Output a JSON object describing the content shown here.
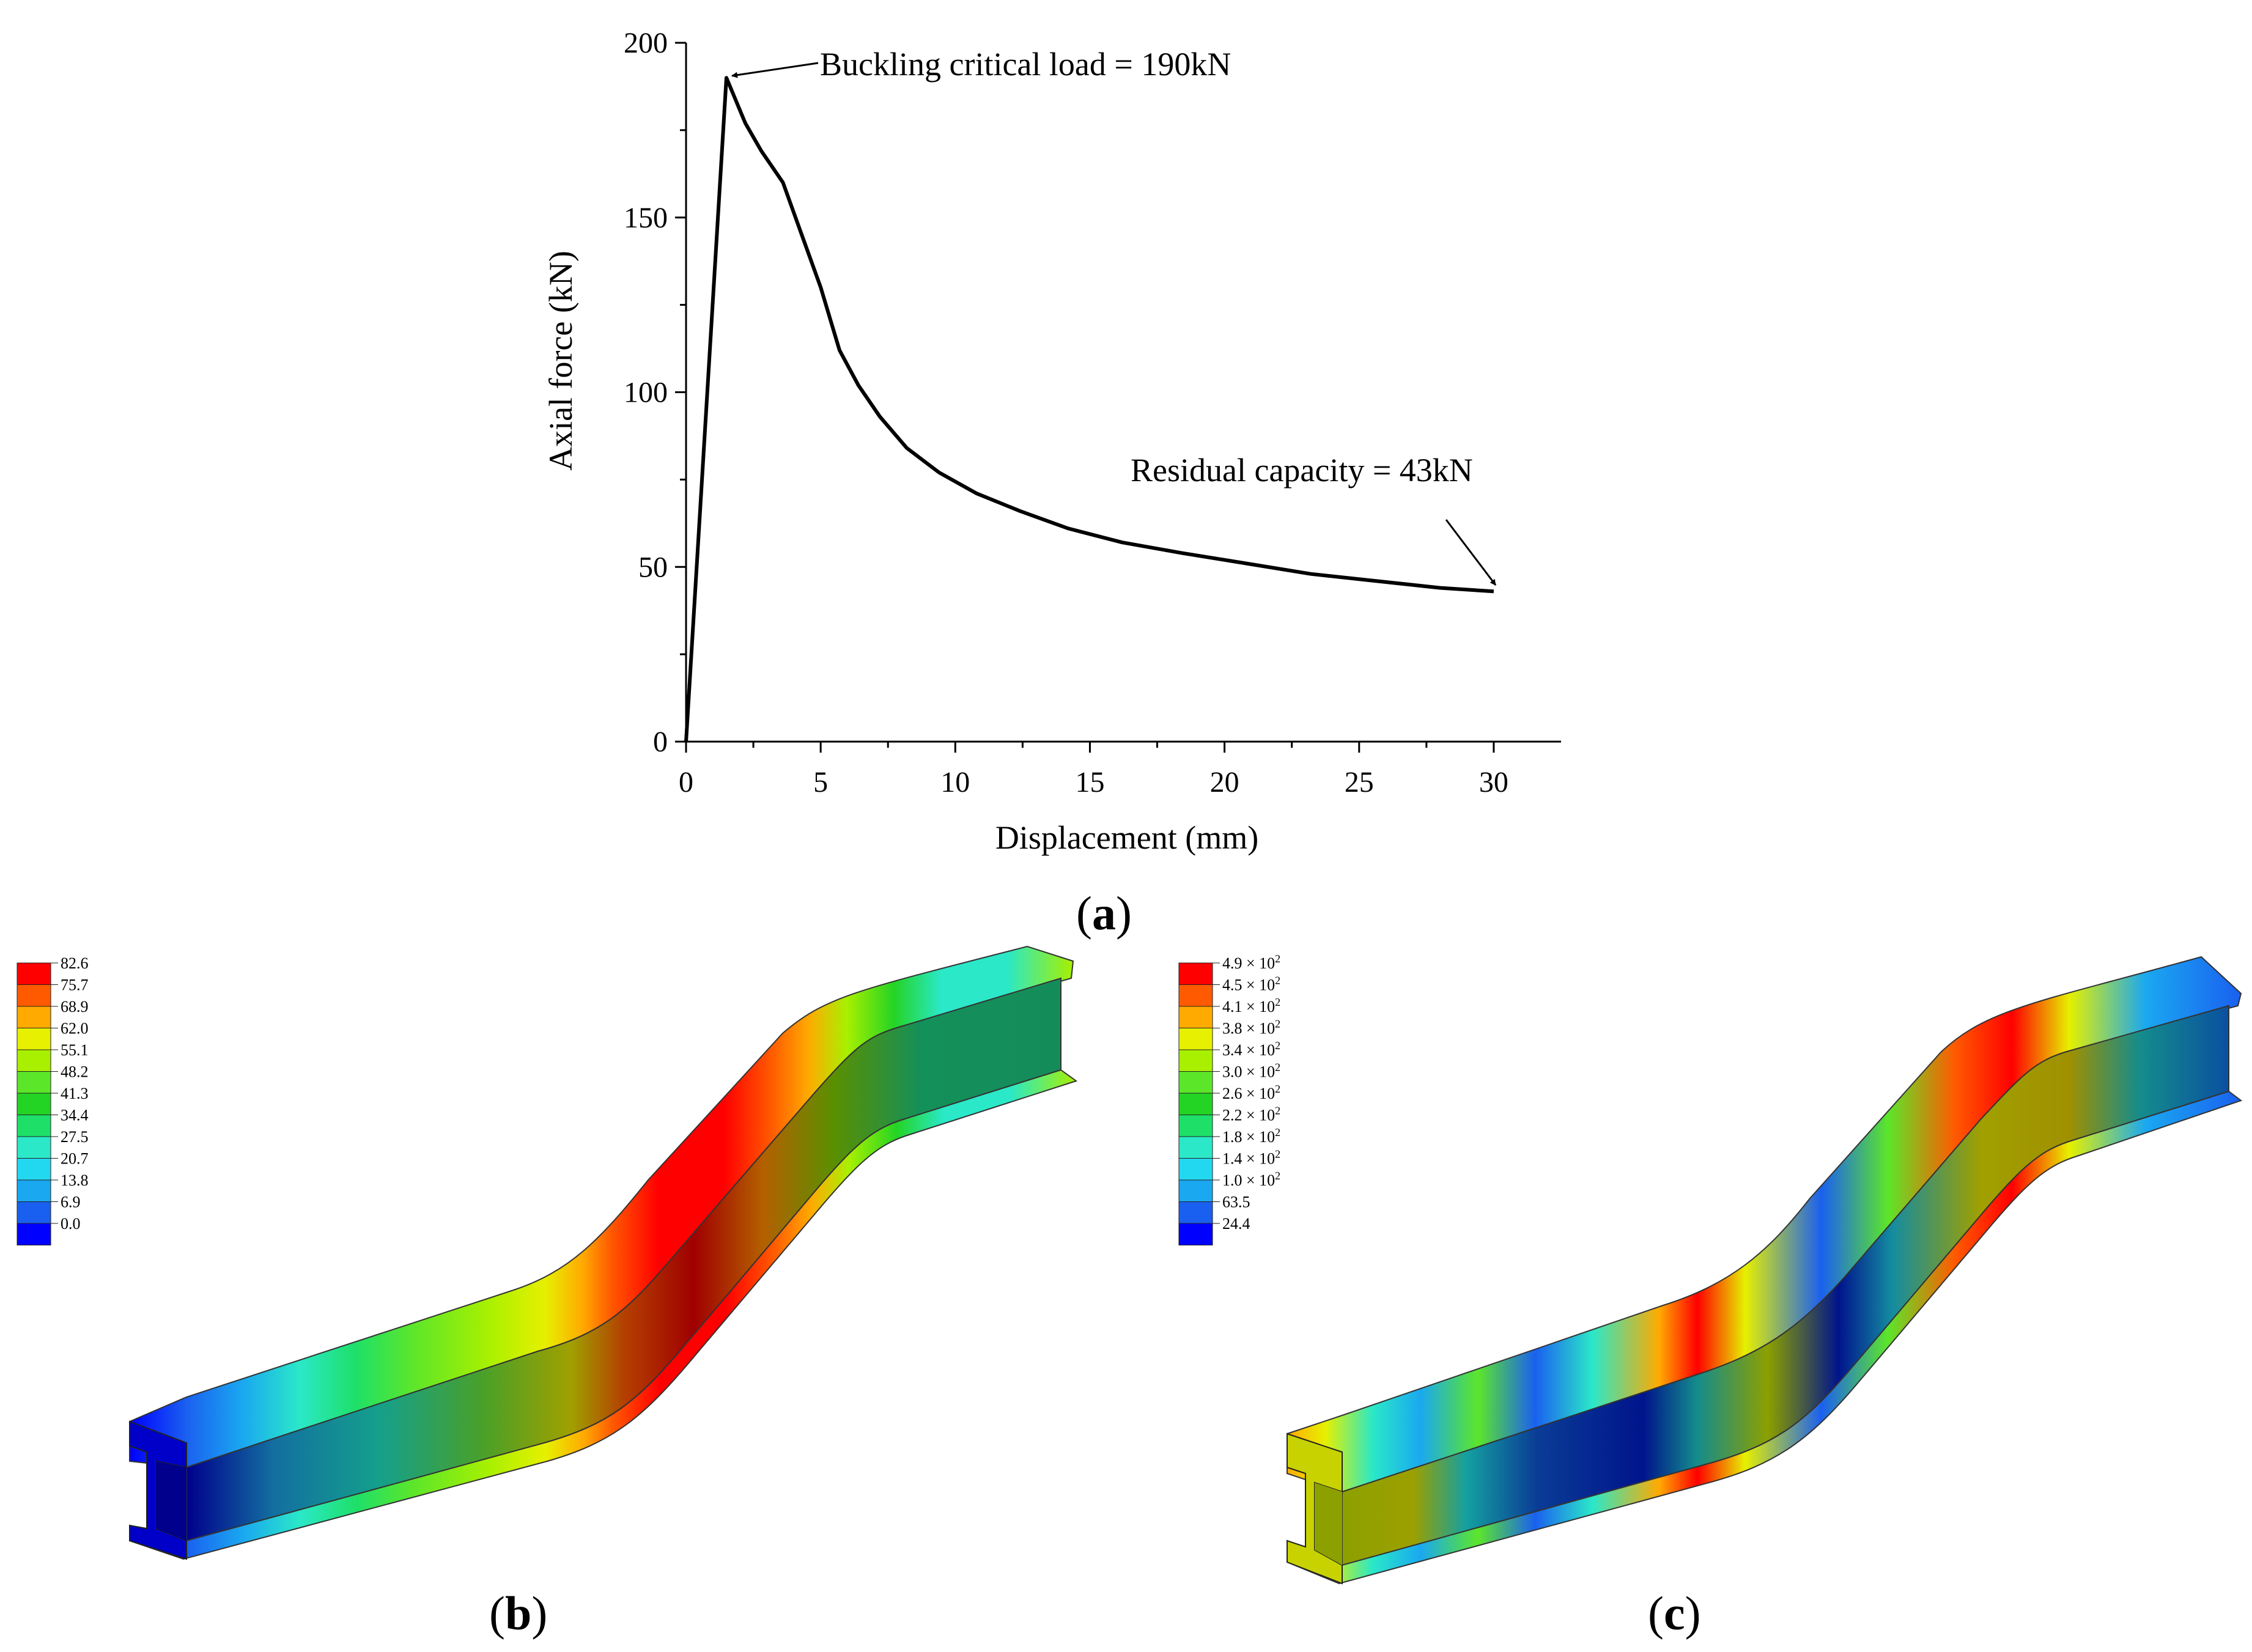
{
  "chart_data": {
    "type": "line",
    "title": "",
    "xlabel": "Displacement (mm)",
    "ylabel": "Axial force (kN)",
    "xlim": [
      0,
      32.5
    ],
    "ylim": [
      0,
      200
    ],
    "xticks": [
      0,
      5,
      10,
      15,
      20,
      25,
      30
    ],
    "yticks": [
      0,
      50,
      100,
      150,
      200
    ],
    "grid": false,
    "series": [
      {
        "name": "Axial force",
        "color": "#000000",
        "x": [
          0,
          1.5,
          2.2,
          2.8,
          3.6,
          4.3,
          5.0,
          5.7,
          6.4,
          7.2,
          8.2,
          9.4,
          10.8,
          12.4,
          14.2,
          16.2,
          18.4,
          20.8,
          23.2,
          25.6,
          28.0,
          30.0
        ],
        "y": [
          0,
          190,
          177,
          169,
          160,
          145,
          130,
          112,
          102,
          93,
          84,
          77,
          71,
          66,
          61,
          57,
          54,
          51,
          48,
          46,
          44,
          43
        ]
      }
    ],
    "annotations": [
      {
        "text": "Buckling critical load = 190kN",
        "x": 1.5,
        "y": 190
      },
      {
        "text": "Residual capacity = 43kN",
        "x": 30,
        "y": 43
      }
    ]
  },
  "panel_labels": {
    "a": "a",
    "b": "b",
    "c": "c"
  },
  "legend_b": {
    "values": [
      "82.6",
      "75.7",
      "68.9",
      "62.0",
      "55.1",
      "48.2",
      "41.3",
      "34.4",
      "27.5",
      "20.7",
      "13.8",
      "6.9",
      "0.0"
    ],
    "colors": [
      "#ff0000",
      "#ff5a00",
      "#ffaa00",
      "#e6f000",
      "#a8f000",
      "#5ce62a",
      "#24d424",
      "#1ee068",
      "#2ae8c8",
      "#22d8f0",
      "#1aa8f0",
      "#1a60f0",
      "#0000ff"
    ]
  },
  "legend_c": {
    "labels": [
      {
        "m": "4.9 × 10",
        "e": "2"
      },
      {
        "m": "4.5 × 10",
        "e": "2"
      },
      {
        "m": "4.1 × 10",
        "e": "2"
      },
      {
        "m": "3.8 × 10",
        "e": "2"
      },
      {
        "m": "3.4 × 10",
        "e": "2"
      },
      {
        "m": "3.0 × 10",
        "e": "2"
      },
      {
        "m": "2.6 × 10",
        "e": "2"
      },
      {
        "m": "2.2 × 10",
        "e": "2"
      },
      {
        "m": "1.8 × 10",
        "e": "2"
      },
      {
        "m": "1.4 × 10",
        "e": "2"
      },
      {
        "m": "1.0 × 10",
        "e": "2"
      },
      {
        "m": "63.5",
        "e": ""
      },
      {
        "m": "24.4",
        "e": ""
      }
    ],
    "colors": [
      "#ff0000",
      "#ff5a00",
      "#ffaa00",
      "#e6f000",
      "#a8f000",
      "#5ce62a",
      "#24d424",
      "#1ee068",
      "#2ae8c8",
      "#22d8f0",
      "#1aa8f0",
      "#1a60f0",
      "#0000ff"
    ]
  }
}
